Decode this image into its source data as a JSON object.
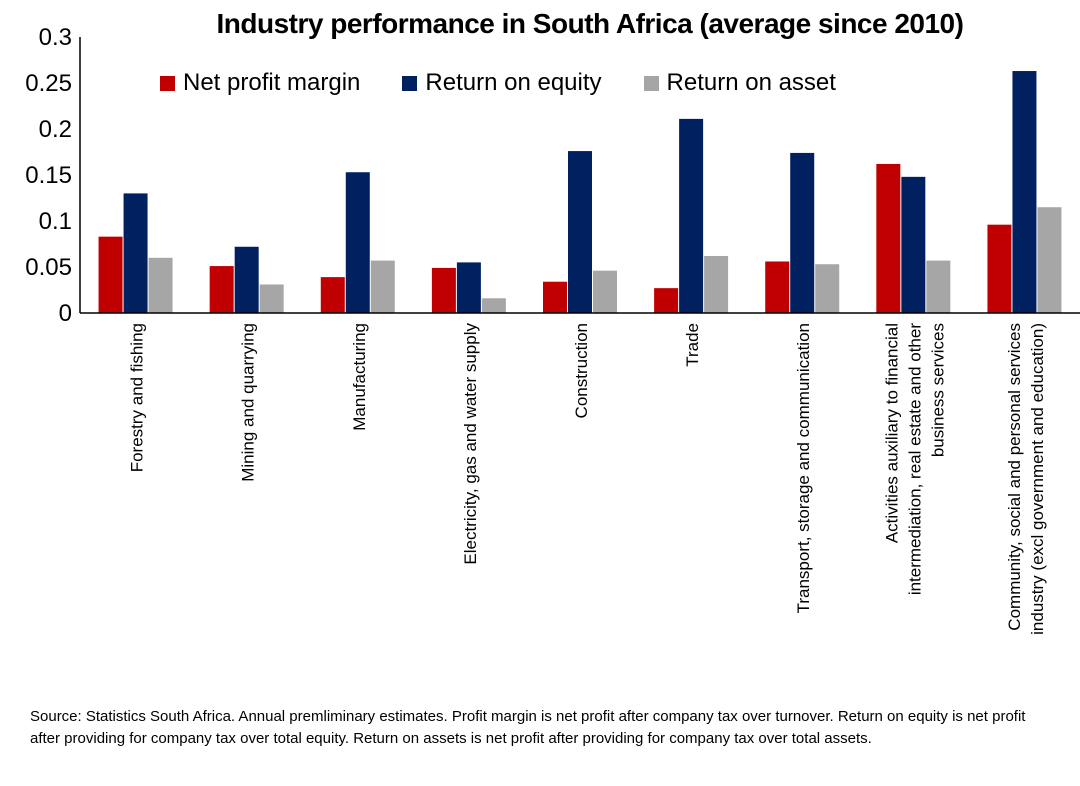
{
  "chart_data": {
    "type": "bar",
    "title": "Industry performance in South Africa (average since 2010)",
    "categories": [
      "Forestry and fishing",
      "Mining and quarrying",
      "Manufacturing",
      "Electricity, gas and water supply",
      "Construction",
      "Trade",
      "Transport, storage and communication",
      "Activities auxiliary to financial intermediation, real estate and other business services",
      "Community, social and personal services industry (excl  government and education)"
    ],
    "category_lines": [
      [
        "Forestry and fishing"
      ],
      [
        "Mining and quarrying"
      ],
      [
        "Manufacturing"
      ],
      [
        "Electricity, gas and water supply"
      ],
      [
        "Construction"
      ],
      [
        "Trade"
      ],
      [
        "Transport, storage and communication"
      ],
      [
        "Activities auxiliary to financial",
        "intermediation, real estate and other",
        "business services"
      ],
      [
        "Community, social and personal services",
        "industry (excl  government and education)"
      ]
    ],
    "series": [
      {
        "name": "Net profit margin",
        "color": "#c00000",
        "values": [
          0.083,
          0.051,
          0.039,
          0.049,
          0.034,
          0.027,
          0.056,
          0.162,
          0.096
        ]
      },
      {
        "name": "Return on equity",
        "color": "#002060",
        "values": [
          0.13,
          0.072,
          0.153,
          0.055,
          0.176,
          0.211,
          0.174,
          0.148,
          0.263
        ]
      },
      {
        "name": "Return on asset",
        "color": "#a6a6a6",
        "values": [
          0.06,
          0.031,
          0.057,
          0.016,
          0.046,
          0.062,
          0.053,
          0.057,
          0.115
        ]
      }
    ],
    "ylim": [
      0,
      0.3
    ],
    "yticks": [
      "0",
      "0.05",
      "0.1",
      "0.15",
      "0.2",
      "0.25",
      "0.3"
    ],
    "xlabel": "",
    "ylabel": "",
    "grid": false,
    "legend_position": "top"
  },
  "source_note": "Source: Statistics South Africa. Annual premliminary estimates. Profit margin is net profit after company tax over turnover. Return on equity is net profit after providing for company tax over total equity. Return on assets is net profit after providing for company tax over total assets."
}
